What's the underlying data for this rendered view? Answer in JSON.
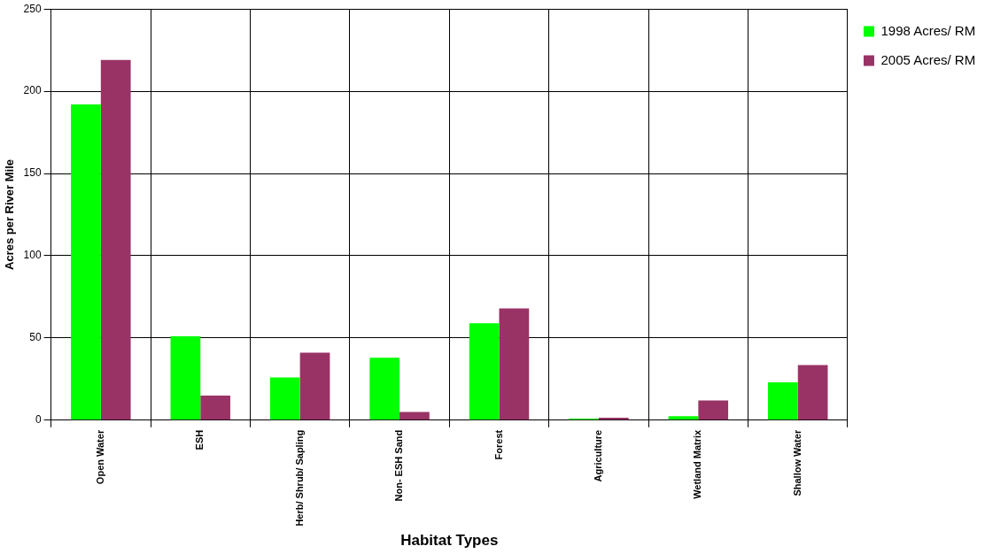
{
  "chart_data": {
    "type": "bar",
    "xlabel": "Habitat Types",
    "ylabel": "Acres per River Mile",
    "categories": [
      "Open Water",
      "ESH",
      "Herb/ Shrub/ Sapling",
      "Non- ESH Sand",
      "Forest",
      "Agriculture",
      "Wetland Matrix",
      "Shallow Water"
    ],
    "series": [
      {
        "name": "1998 Acres/ RM",
        "color": "#00ff00",
        "values": [
          192,
          51,
          26,
          38,
          59,
          1,
          2.5,
          23
        ]
      },
      {
        "name": "2005 Acres/ RM",
        "color": "#993366",
        "values": [
          219,
          15,
          41,
          5,
          68,
          1.5,
          12,
          33.5
        ]
      }
    ],
    "ylim": [
      0,
      250
    ],
    "yticks": [
      0,
      50,
      100,
      150,
      200,
      250
    ],
    "grid": true,
    "legend": "top right"
  }
}
